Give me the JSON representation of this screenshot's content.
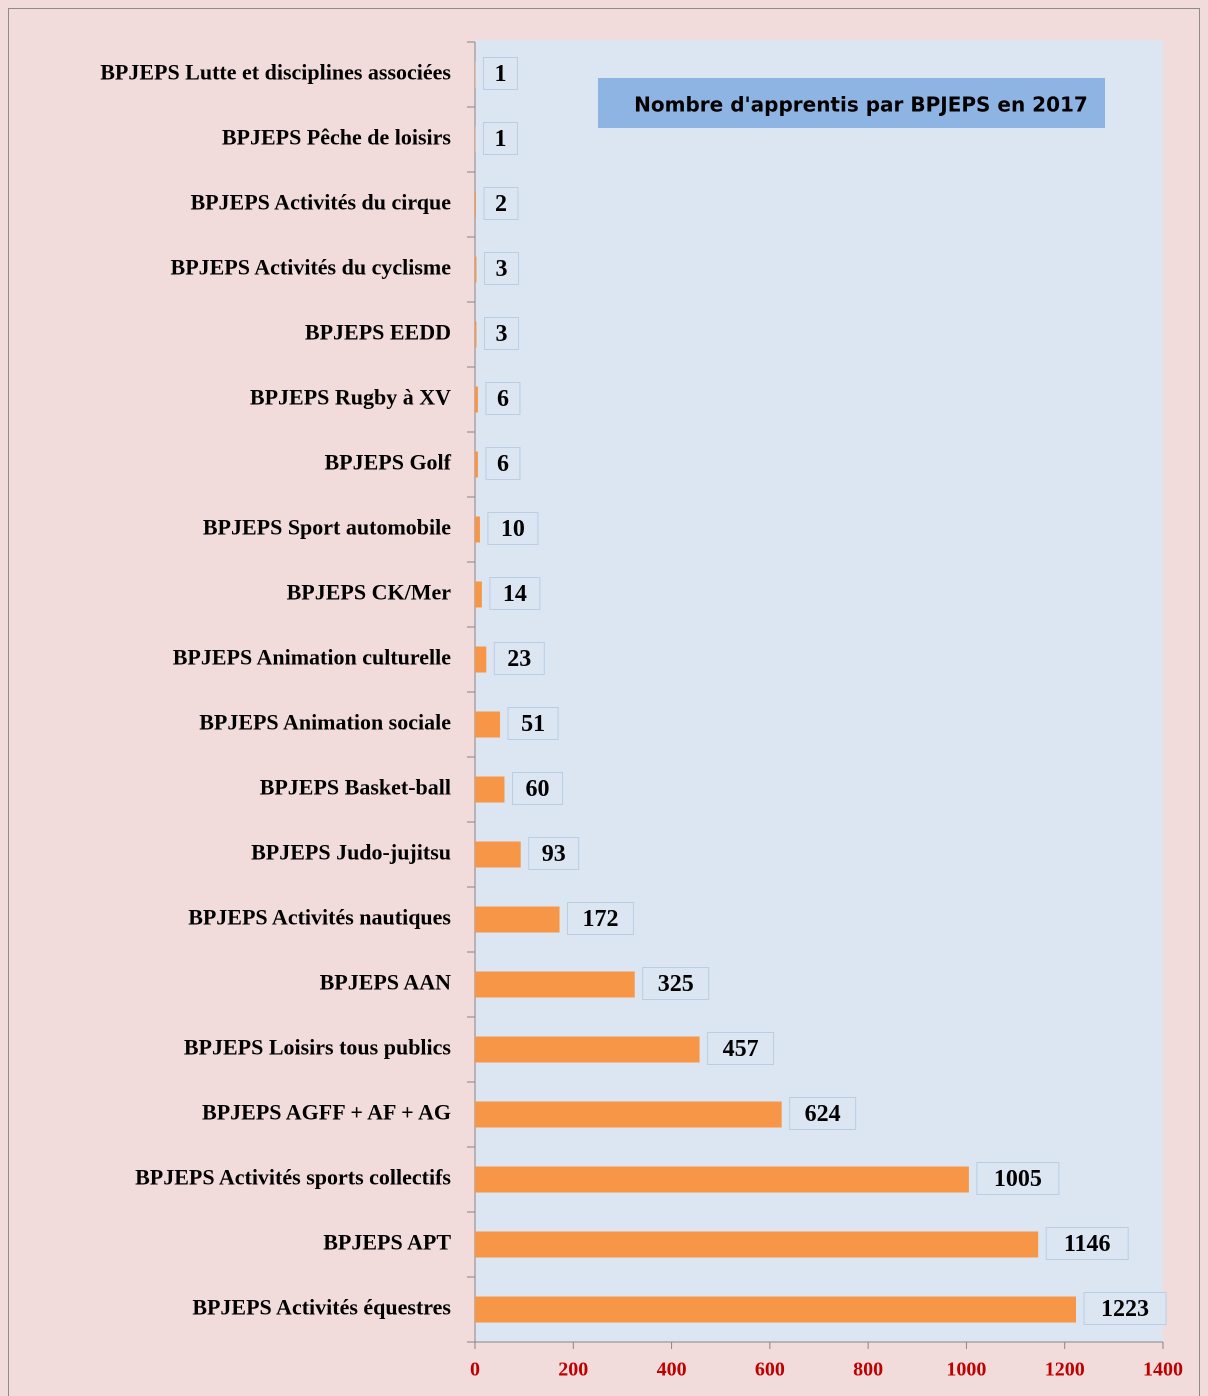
{
  "chart_data": {
    "type": "bar",
    "orientation": "horizontal",
    "title": "Nombre d'apprentis par BPJEPS en 2017",
    "categories": [
      "BPJEPS Lutte et disciplines associées",
      "BPJEPS Pêche de loisirs",
      "BPJEPS Activités du cirque",
      "BPJEPS Activités du cyclisme",
      "BPJEPS EEDD",
      "BPJEPS Rugby à XV",
      "BPJEPS Golf",
      "BPJEPS Sport automobile",
      "BPJEPS CK/Mer",
      "BPJEPS Animation culturelle",
      "BPJEPS Animation sociale",
      "BPJEPS Basket-ball",
      "BPJEPS Judo-jujitsu",
      "BPJEPS Activités nautiques",
      "BPJEPS AAN",
      "BPJEPS Loisirs tous publics",
      "BPJEPS AGFF + AF + AG",
      "BPJEPS Activités sports collectifs",
      "BPJEPS APT",
      "BPJEPS Activités équestres"
    ],
    "values": [
      1,
      1,
      2,
      3,
      3,
      6,
      6,
      10,
      14,
      23,
      51,
      60,
      93,
      172,
      325,
      457,
      624,
      1005,
      1146,
      1223
    ],
    "color": "#f79646",
    "xlim": [
      0,
      1400
    ],
    "xticks": [
      0,
      200,
      400,
      600,
      800,
      1000,
      1200,
      1400
    ]
  }
}
